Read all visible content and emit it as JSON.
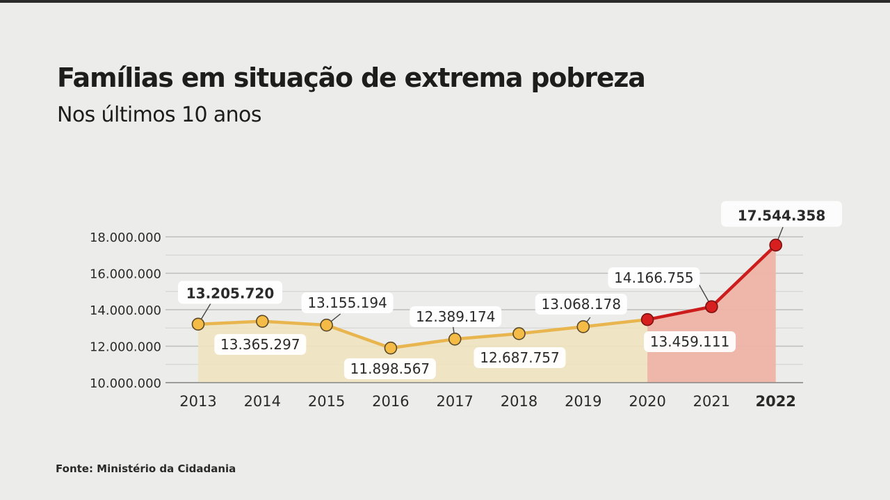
{
  "title": "Famílias em situação de extrema pobreza",
  "subtitle": "Nos últimos 10 anos",
  "source": "Fonte: Ministério da Cidadania",
  "colors": {
    "yellow_line": "#e8b54e",
    "yellow_point": "#f4bb46",
    "yellow_area": "#efe3bf",
    "red_line": "#cc1c1c",
    "red_point": "#d81f1f",
    "red_area": "#efb3a7",
    "background": "#ececea"
  },
  "chart_data": {
    "type": "line",
    "title": "Famílias em situação de extrema pobreza",
    "subtitle": "Nos últimos 10 anos",
    "xlabel": "",
    "ylabel": "",
    "ylim": [
      10000000,
      18000000
    ],
    "yticks": [
      "10.000.000",
      "12.000.000",
      "14.000.000",
      "16.000.000",
      "18.000.000"
    ],
    "grid": true,
    "categories": [
      "2013",
      "2014",
      "2015",
      "2016",
      "2017",
      "2018",
      "2019",
      "2020",
      "2021",
      "2022"
    ],
    "values": [
      13205720,
      13365297,
      13155194,
      11898567,
      12389174,
      12687757,
      13068178,
      13459111,
      14166755,
      17544358
    ],
    "labels": [
      "13.205.720",
      "13.365.297",
      "13.155.194",
      "11.898.567",
      "12.389.174",
      "12.687.757",
      "13.068.178",
      "13.459.111",
      "14.166.755",
      "17.544.358"
    ],
    "highlight_from_index": 7,
    "highlight_category": "2022"
  }
}
